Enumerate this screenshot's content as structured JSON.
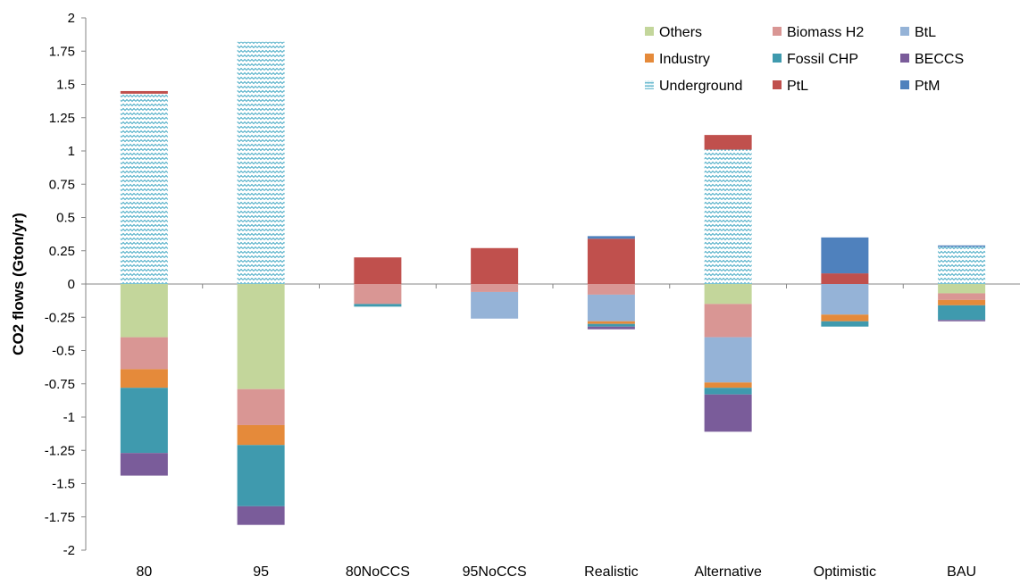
{
  "chart_data": {
    "type": "bar",
    "stacked": true,
    "ylabel": "CO2 flows (Gton/yr)",
    "xlabel": "",
    "ylim": [
      -2,
      2
    ],
    "yticks": [
      2,
      1.75,
      1.5,
      1.25,
      1,
      0.75,
      0.5,
      0.25,
      0,
      -0.25,
      -0.5,
      -0.75,
      -1,
      -1.25,
      -1.5,
      -1.75,
      -2
    ],
    "ytick_labels": [
      "2",
      "1.75",
      "1.5",
      "1.25",
      "1",
      "0.75",
      "0.5",
      "0.25",
      "0",
      "-0.25",
      "-0.5",
      "-0.75",
      "-1",
      "-1.25",
      "-1.5",
      "-1.75",
      "-2"
    ],
    "grid": false,
    "legend_position": "top-right",
    "categories": [
      "80",
      "95",
      "80NoCCS",
      "95NoCCS",
      "Realistic",
      "Alternative",
      "Optimistic",
      "BAU"
    ],
    "series": [
      {
        "name": "Others",
        "color": "#c3d69b",
        "values": [
          -0.4,
          -0.79,
          0,
          0,
          0,
          -0.15,
          0,
          -0.07
        ]
      },
      {
        "name": "Biomass H2",
        "color": "#d99694",
        "values": [
          -0.24,
          -0.27,
          -0.15,
          -0.06,
          -0.08,
          -0.25,
          0,
          -0.05
        ]
      },
      {
        "name": "BtL",
        "color": "#95b3d7",
        "values": [
          0,
          0,
          0,
          -0.2,
          -0.2,
          -0.34,
          -0.23,
          0
        ]
      },
      {
        "name": "Industry",
        "color": "#e58a3a",
        "values": [
          -0.14,
          -0.15,
          0,
          0,
          -0.02,
          -0.04,
          -0.05,
          -0.04
        ]
      },
      {
        "name": "Fossil CHP",
        "color": "#3f9aae",
        "values": [
          -0.49,
          -0.46,
          -0.02,
          0,
          -0.02,
          -0.05,
          -0.04,
          -0.11
        ]
      },
      {
        "name": "BECCS",
        "color": "#7a5c9a",
        "values": [
          -0.17,
          -0.14,
          0,
          0,
          -0.02,
          -0.28,
          0,
          -0.01
        ]
      },
      {
        "name": "Underground",
        "color": "#4bacc6",
        "pattern": "zigzag",
        "values": [
          1.43,
          1.82,
          0,
          0,
          0,
          1.01,
          0,
          0.28
        ]
      },
      {
        "name": "PtL",
        "color": "#c0504d",
        "values": [
          0.02,
          0,
          0.2,
          0.27,
          0.34,
          0.11,
          0.08,
          0
        ]
      },
      {
        "name": "PtM",
        "color": "#4f81bd",
        "values": [
          0,
          0,
          0,
          0,
          0.02,
          0,
          0.27,
          0.01
        ]
      }
    ],
    "legend_order": [
      "Others",
      "Biomass H2",
      "BtL",
      "Industry",
      "Fossil CHP",
      "BECCS",
      "Underground",
      "PtL",
      "PtM"
    ]
  }
}
